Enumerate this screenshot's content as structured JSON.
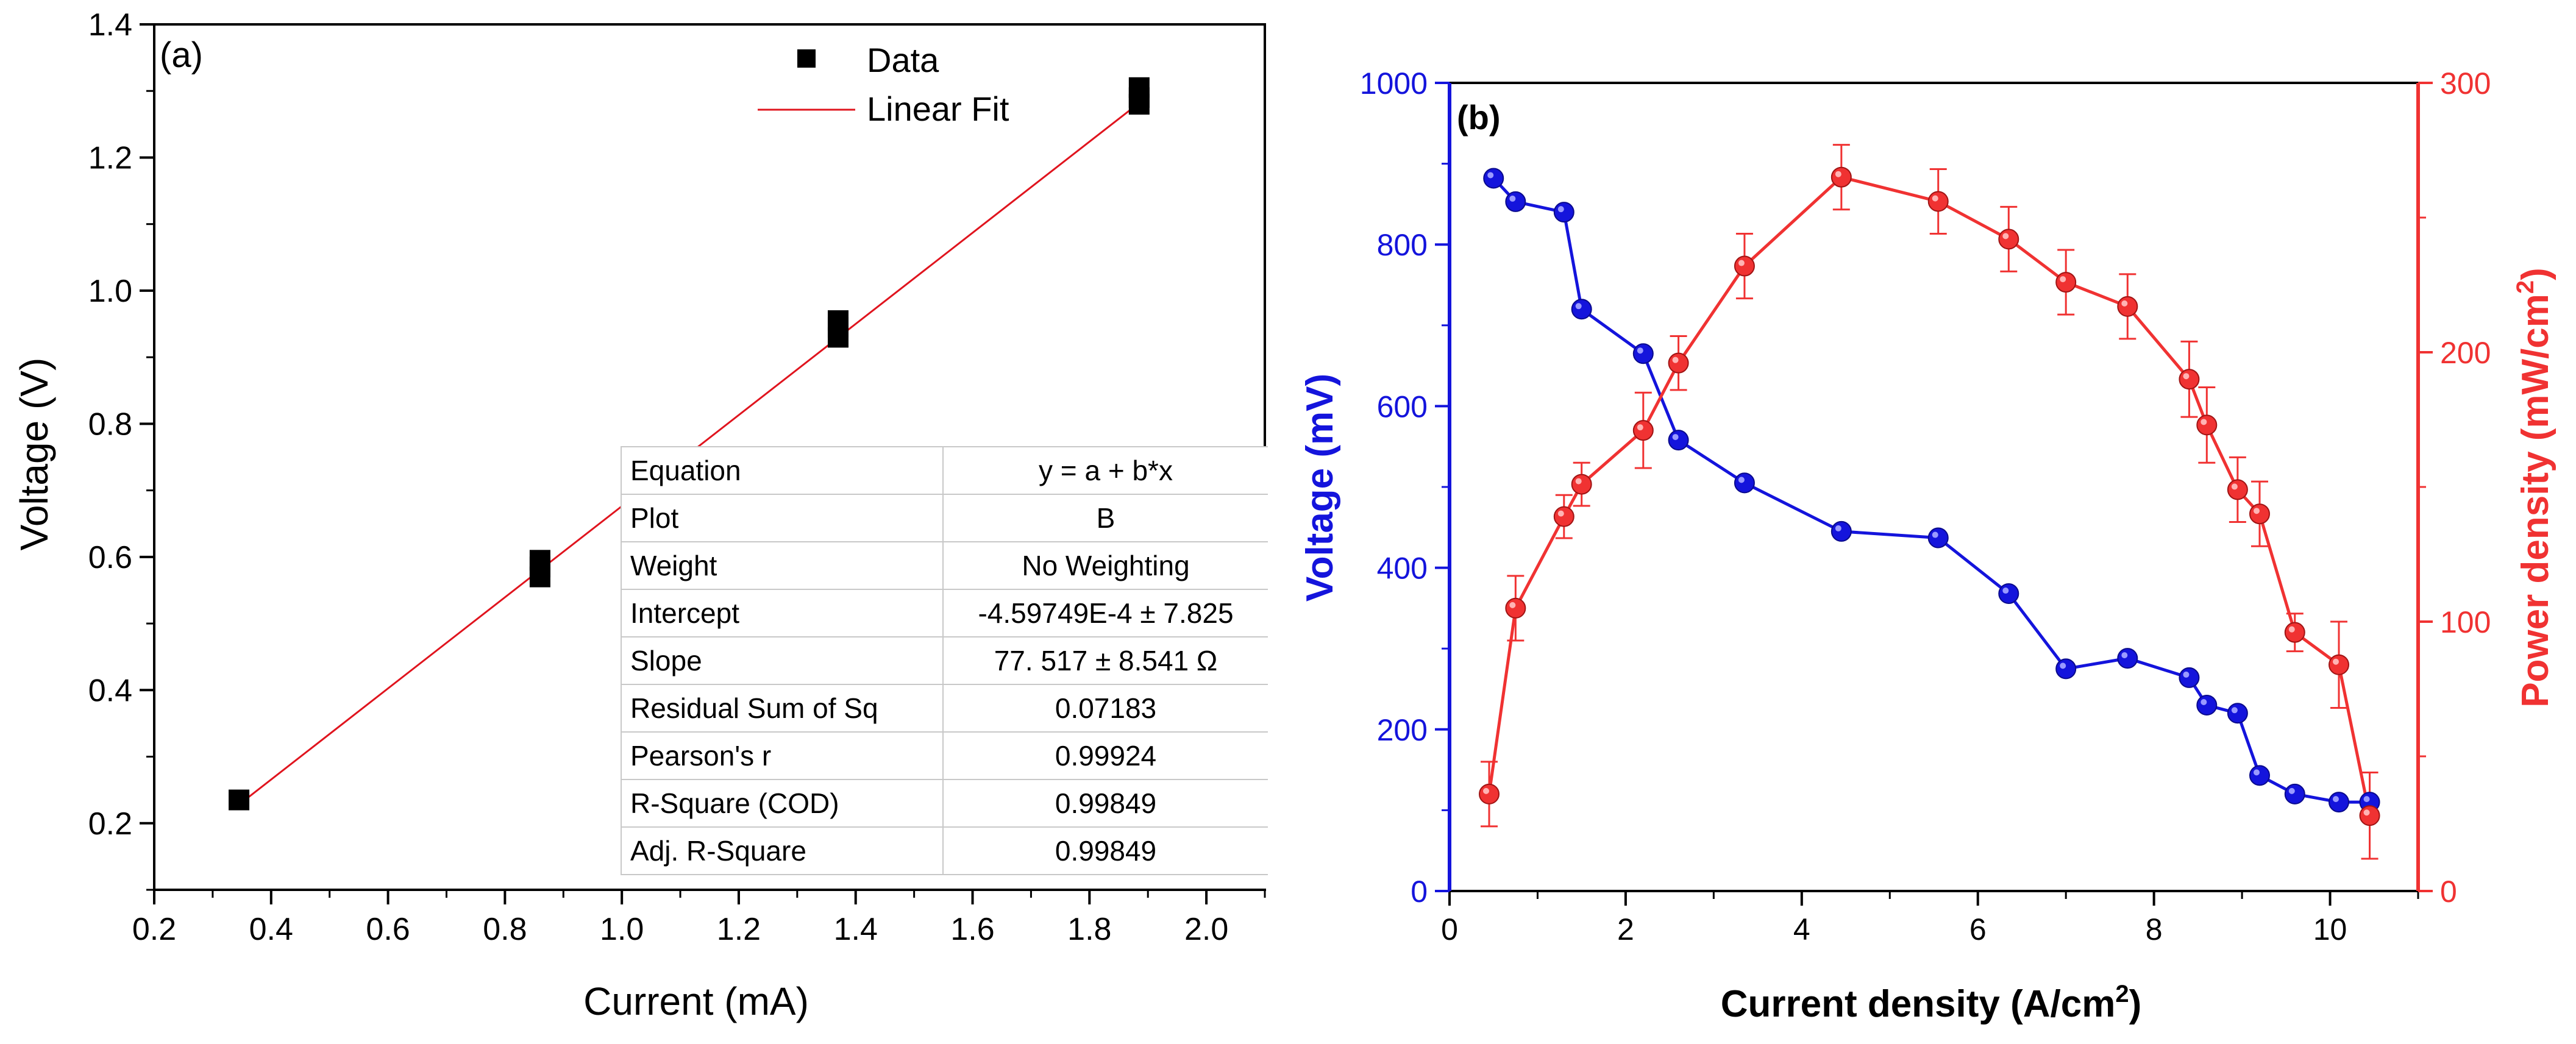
{
  "chart_data": [
    {
      "type": "scatter",
      "panel_label": "(a)",
      "xlabel": "Current (mA)",
      "ylabel": "Voltage (V)",
      "xlim": [
        0.2,
        2.1
      ],
      "ylim": [
        0.1,
        1.4
      ],
      "xticks": [
        0.2,
        0.4,
        0.6,
        0.8,
        1.0,
        1.2,
        1.4,
        1.6,
        1.8,
        2.0
      ],
      "xtick_labels": [
        "0.2",
        "0.4",
        "0.6",
        "0.8",
        "1.0",
        "1.2",
        "1.4",
        "1.6",
        "1.8",
        "2.0"
      ],
      "yticks": [
        0.2,
        0.4,
        0.6,
        0.8,
        1.0,
        1.2,
        1.4
      ],
      "ytick_labels": [
        "0.2",
        "0.4",
        "0.6",
        "0.8",
        "1.0",
        "1.2",
        "1.4"
      ],
      "legend": {
        "data_label": "Data",
        "fit_label": "Linear Fit",
        "position": "top-right"
      },
      "series": [
        {
          "name": "Data",
          "marker": "square",
          "color": "#000000",
          "points": [
            {
              "x": 0.345,
              "y": 0.235
            },
            {
              "x": 0.86,
              "y": 0.57
            },
            {
              "x": 0.86,
              "y": 0.585
            },
            {
              "x": 0.86,
              "y": 0.595
            },
            {
              "x": 1.37,
              "y": 0.93
            },
            {
              "x": 1.37,
              "y": 0.945
            },
            {
              "x": 1.37,
              "y": 0.955
            },
            {
              "x": 1.885,
              "y": 1.28
            },
            {
              "x": 1.885,
              "y": 1.29
            },
            {
              "x": 1.885,
              "y": 1.305
            }
          ]
        },
        {
          "name": "Linear Fit",
          "type": "line",
          "color": "#e0141e",
          "points": [
            {
              "x": 0.345,
              "y": 0.228
            },
            {
              "x": 1.885,
              "y": 1.282
            }
          ]
        }
      ],
      "fit_table": [
        {
          "key": "Equation",
          "value": "y = a + b*x"
        },
        {
          "key": "Plot",
          "value": "B"
        },
        {
          "key": "Weight",
          "value": "No Weighting"
        },
        {
          "key": "Intercept",
          "value": "-4.59749E-4 ± 7.825"
        },
        {
          "key": "Slope",
          "value": "77. 517 ± 8.541 Ω"
        },
        {
          "key": "Residual Sum of Sq",
          "value": "0.07183"
        },
        {
          "key": "Pearson's r",
          "value": "0.99924"
        },
        {
          "key": "R-Square (COD)",
          "value": "0.99849"
        },
        {
          "key": "Adj. R-Square",
          "value": "0.99849"
        }
      ]
    },
    {
      "type": "line",
      "panel_label": "(b)",
      "xlabel": "Current density (A/cm",
      "xlabel_sup": "2",
      "xlabel_end": ")",
      "ylabel_left": "Voltage (mV)",
      "ylabel_right": "Power density (mW/cm",
      "ylabel_right_sup": "2",
      "ylabel_right_end": ")",
      "xlim": [
        0,
        11
      ],
      "ylim_left": [
        0,
        1000
      ],
      "ylim_right": [
        0,
        300
      ],
      "xticks": [
        0,
        2,
        4,
        6,
        8,
        10
      ],
      "xtick_labels": [
        "0",
        "2",
        "4",
        "6",
        "8",
        "10"
      ],
      "yticks_left": [
        0,
        200,
        400,
        600,
        800,
        1000
      ],
      "ytick_labels_left": [
        "0",
        "200",
        "400",
        "600",
        "800",
        "1000"
      ],
      "yticks_right": [
        0,
        100,
        200,
        300
      ],
      "ytick_labels_right": [
        "0",
        "100",
        "200",
        "300"
      ],
      "colors": {
        "voltage": "#1414dc",
        "power": "#f03232"
      },
      "series": [
        {
          "name": "Voltage",
          "axis": "left",
          "color": "#1414dc",
          "x": [
            0.5,
            0.75,
            1.3,
            1.5,
            2.2,
            2.6,
            3.35,
            4.45,
            5.55,
            6.35,
            7.0,
            7.7,
            8.4,
            8.6,
            8.95,
            9.2,
            9.6,
            10.1,
            10.45
          ],
          "y": [
            882,
            853,
            840,
            720,
            665,
            558,
            505,
            445,
            437,
            368,
            275,
            288,
            264,
            230,
            220,
            143,
            120,
            110,
            110
          ]
        },
        {
          "name": "Power density",
          "axis": "right",
          "color": "#f03232",
          "x": [
            0.45,
            0.75,
            1.3,
            1.5,
            2.2,
            2.6,
            3.35,
            4.45,
            5.55,
            6.35,
            7.0,
            7.7,
            8.4,
            8.6,
            8.95,
            9.2,
            9.6,
            10.1,
            10.45
          ],
          "y": [
            36,
            105,
            139,
            151,
            171,
            196,
            232,
            265,
            256,
            242,
            226,
            217,
            190,
            173,
            149,
            140,
            96,
            84,
            28
          ],
          "error": [
            12,
            12,
            8,
            8,
            14,
            10,
            12,
            12,
            12,
            12,
            12,
            12,
            14,
            14,
            12,
            12,
            7,
            16,
            16
          ]
        }
      ]
    }
  ]
}
